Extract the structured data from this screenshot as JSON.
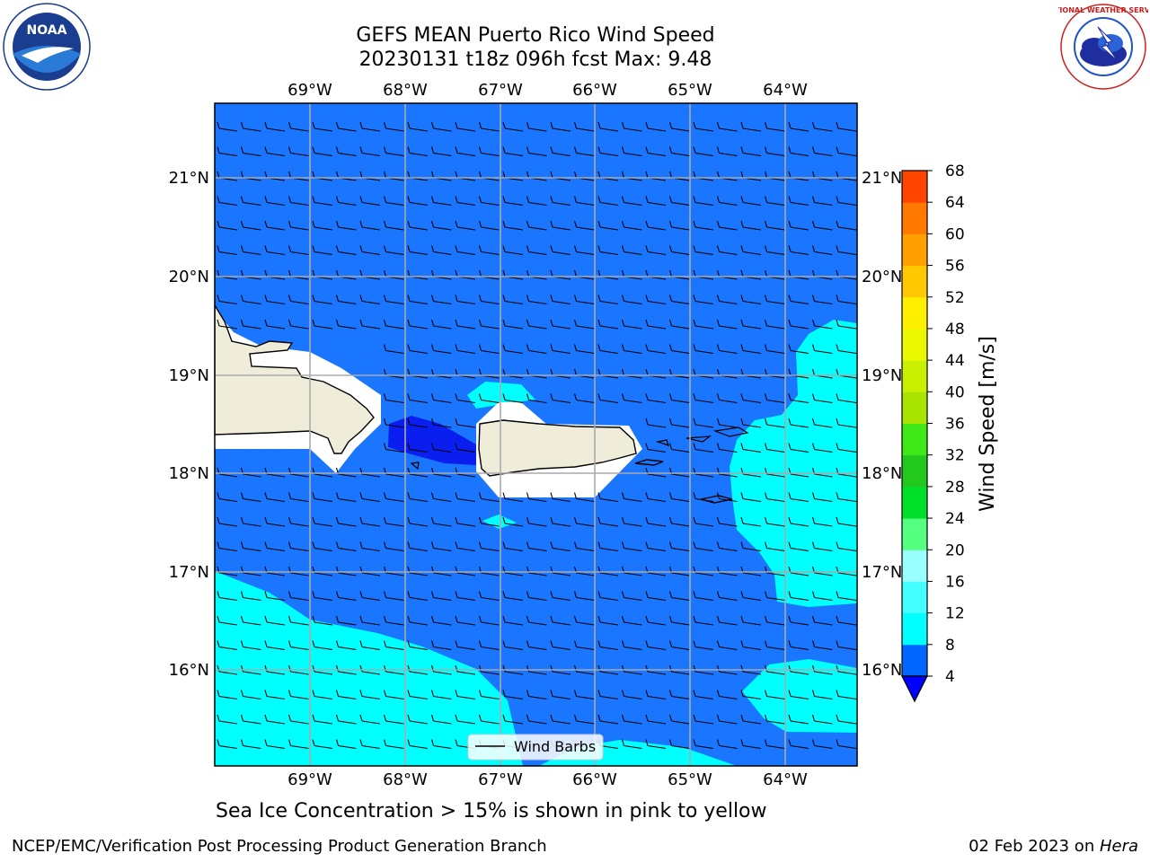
{
  "header": {
    "title_line1": "GEFS MEAN Puerto Rico Wind Speed",
    "title_line2": "20230131 t18z 096h fcst   Max: 9.48"
  },
  "logos": {
    "left_logo_text": "NOAA",
    "right_logo_text": "NATIONAL WEATHER SERVICE"
  },
  "map": {
    "lon_labels": [
      "69°W",
      "68°W",
      "67°W",
      "66°W",
      "65°W",
      "64°W"
    ],
    "lat_labels": [
      "21°N",
      "20°N",
      "19°N",
      "18°N",
      "17°N",
      "16°N"
    ],
    "legend_label": "Wind Barbs",
    "colors": {
      "ocean_blue": "#1a75ff",
      "cyan": "#00ffff",
      "dark_blue": "#0a1eef",
      "land": "#efedda"
    }
  },
  "colorbar": {
    "label": "Wind Speed [m/s]",
    "ticks": [
      "4",
      "8",
      "12",
      "16",
      "20",
      "24",
      "28",
      "32",
      "36",
      "40",
      "44",
      "48",
      "52",
      "56",
      "60",
      "64",
      "68"
    ],
    "colors": [
      "#0066ff",
      "#00ffff",
      "#44ffff",
      "#99ffff",
      "#55ff80",
      "#00e02a",
      "#22c81e",
      "#40e818",
      "#a8e400",
      "#c8f000",
      "#eaf800",
      "#fff000",
      "#ffc800",
      "#ffa000",
      "#ff7800",
      "#ff4400",
      "#ff2000",
      "#ff0000"
    ],
    "under_color": "#0000ff"
  },
  "caption": "Sea Ice Concentration > 15% is shown in pink to yellow",
  "footer": {
    "left": "NCEP/EMC/Verification Post Processing Product Generation Branch",
    "right_prefix": "02 Feb 2023 on ",
    "right_italic": "Hera"
  }
}
